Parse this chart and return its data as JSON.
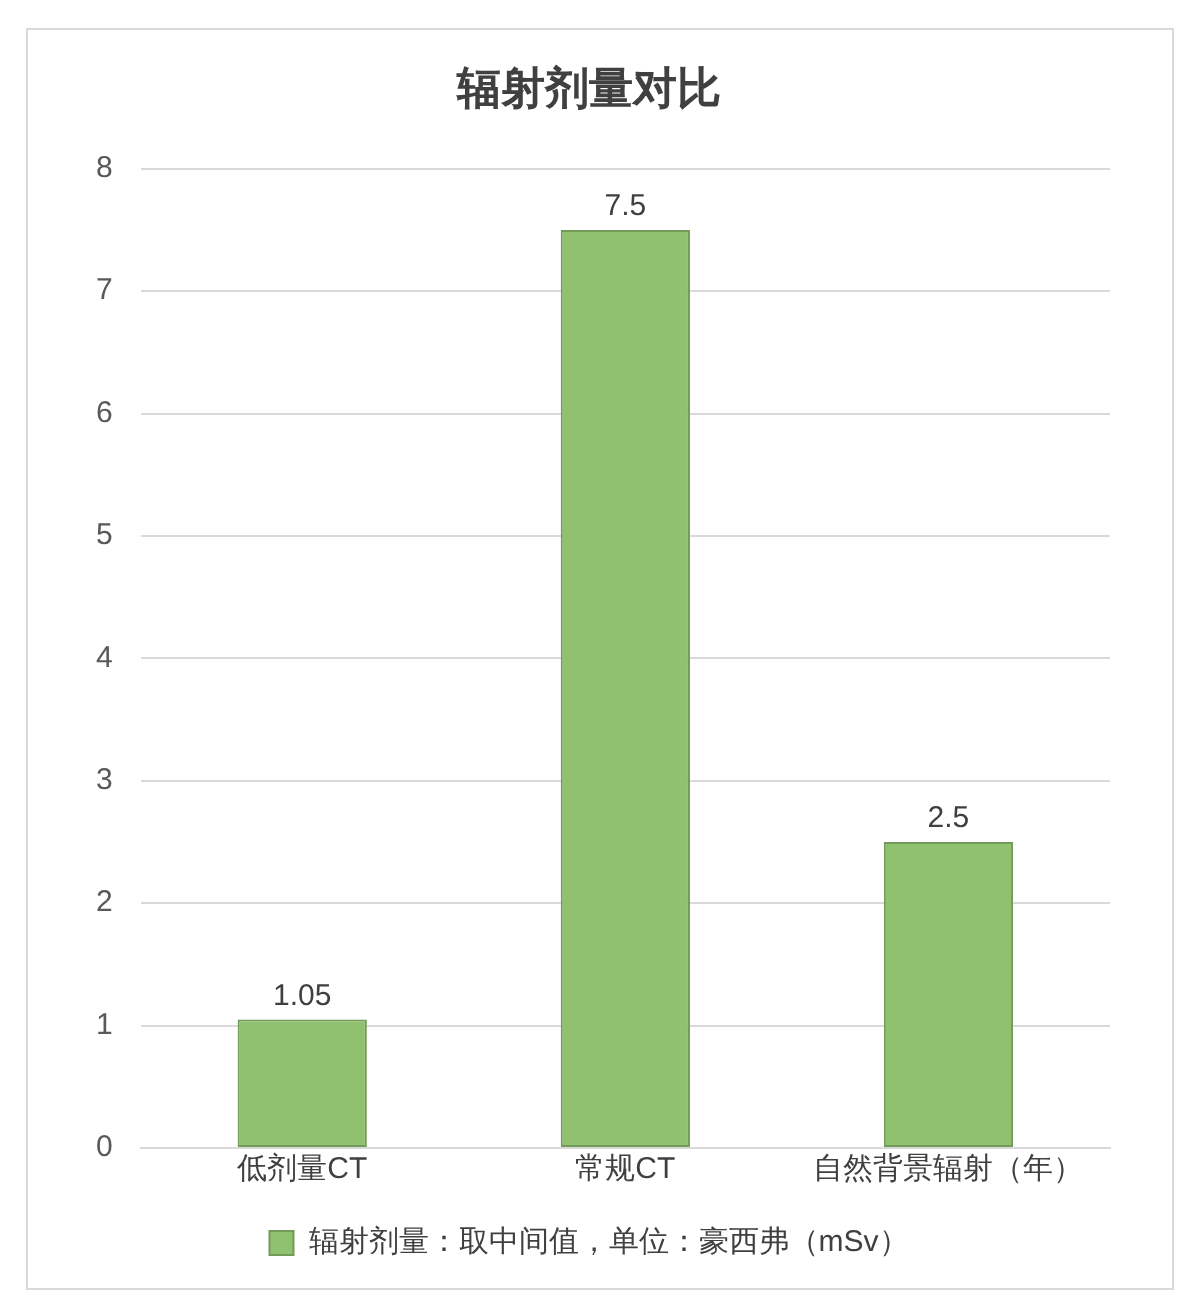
{
  "chart_data": {
    "type": "bar",
    "title": "辐射剂量对比",
    "categories": [
      "低剂量CT",
      "常规CT",
      "自然背景辐射（年）"
    ],
    "series": [
      {
        "name": "辐射剂量：取中间值，单位：豪西弗（mSv）",
        "color": "#8fc16e",
        "values": [
          1.05,
          7.5,
          2.5
        ]
      }
    ],
    "ylim": [
      0,
      8
    ],
    "yticks": [
      0,
      1,
      2,
      3,
      4,
      5,
      6,
      7,
      8
    ],
    "grid": "y",
    "legend": "bottom",
    "data_labels": true
  }
}
